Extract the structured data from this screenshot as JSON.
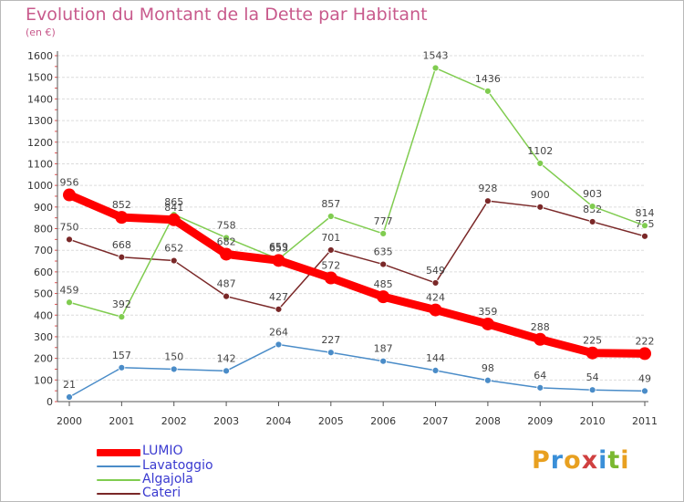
{
  "header": {
    "title": "Evolution du Montant de la Dette par Habitant",
    "subtitle": "(en €)"
  },
  "logo": {
    "text": "Proxiti",
    "colors": [
      "#e8a020",
      "#3a8fd8",
      "#e8a020",
      "#d04040",
      "#3a8fd8",
      "#7ab830",
      "#e8a020"
    ]
  },
  "chart_data": {
    "type": "line",
    "x": [
      "2000",
      "2001",
      "2002",
      "2003",
      "2004",
      "2005",
      "2006",
      "2007",
      "2008",
      "2009",
      "2010",
      "2011"
    ],
    "ylim": [
      0,
      1600
    ],
    "yticks": [
      0,
      100,
      200,
      300,
      400,
      500,
      600,
      700,
      800,
      900,
      1000,
      1100,
      1200,
      1300,
      1400,
      1500,
      1600
    ],
    "grid": true,
    "legend_position": "bottom-left",
    "series": [
      {
        "name": "Cateri",
        "color": "#7a2828",
        "values": [
          750,
          668,
          652,
          487,
          427,
          701,
          635,
          549,
          928,
          900,
          832,
          765
        ]
      },
      {
        "name": "Algajola",
        "color": "#80cc50",
        "values": [
          459,
          392,
          865,
          758,
          659,
          857,
          777,
          1543,
          1436,
          1102,
          903,
          814
        ]
      },
      {
        "name": "Lavatoggio",
        "color": "#4a8cc8",
        "values": [
          21,
          157,
          150,
          142,
          264,
          227,
          187,
          144,
          98,
          64,
          54,
          49
        ]
      },
      {
        "name": "LUMIO",
        "color": "#ff0000",
        "values": [
          956,
          852,
          841,
          682,
          653,
          572,
          485,
          424,
          359,
          288,
          225,
          222
        ]
      }
    ]
  }
}
